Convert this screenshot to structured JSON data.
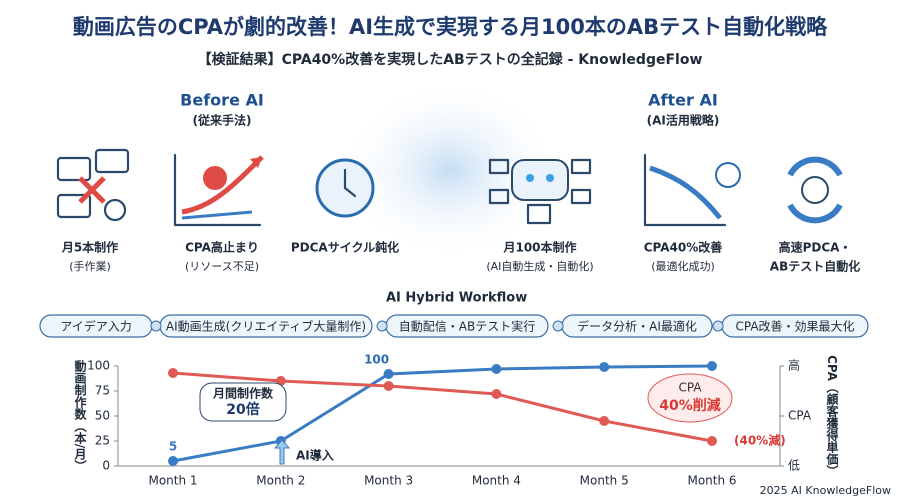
{
  "header": {
    "title": "動画広告のCPAが劇的改善！AI生成で実現する月100本のABテスト自動化戦略",
    "subtitle": "【検証結果】CPA40%改善を実現したABテストの全記録 - KnowledgeFlow"
  },
  "before": {
    "title": "Before AI",
    "subtitle": "(従来手法)",
    "items": [
      {
        "label": "月5本制作",
        "sub": "(手作業)"
      },
      {
        "label": "CPA高止まり",
        "sub": "(リソース不足)"
      },
      {
        "label": "PDCAサイクル鈍化"
      }
    ]
  },
  "after": {
    "title": "After AI",
    "subtitle": "(AI活用戦略)",
    "items": [
      {
        "label": "月100本制作",
        "sub": "(AI自動生成・自動化)"
      },
      {
        "label": "CPA40%改善",
        "sub": "(最適化成功)"
      },
      {
        "label": "高速PDCA・",
        "sub": "ABテスト自動化"
      }
    ]
  },
  "workflow": {
    "title": "AI Hybrid Workflow",
    "steps": [
      "アイデア入力",
      "AI動画生成(クリエイティブ大量制作)",
      "自動配信・ABテスト実行",
      "データ分析・AI最適化",
      "CPA改善・効果最大化"
    ]
  },
  "chart_data": {
    "type": "line",
    "categories": [
      "Month 1",
      "Month 2",
      "Month 3",
      "Month 4",
      "Month 5",
      "Month 6"
    ],
    "y_label": "動画制作数（本/月）",
    "y2_label": "CPA（顧客獲得単価）",
    "series": [
      {
        "color": "#3a7cc4",
        "values": [
          5,
          25,
          92,
          97,
          99,
          100
        ],
        "value_labels": [
          "5",
          null,
          null,
          null,
          null,
          null
        ]
      },
      {
        "color": "#e05a55",
        "axis": "y2",
        "values": [
          93,
          85,
          80,
          72,
          45,
          25
        ]
      }
    ],
    "ylim": [
      0,
      100
    ],
    "yticks": [
      0,
      25,
      50,
      75,
      100
    ],
    "y2lim": [
      0,
      100
    ],
    "y2ticks": [
      {
        "value": 100,
        "label": "高"
      },
      {
        "value": 50,
        "label": "CPA"
      },
      {
        "value": 0,
        "label": "低"
      }
    ],
    "annotations": [
      {
        "text": "100"
      },
      {
        "text": "月間制作数",
        "sub": "20倍"
      },
      {
        "text": "AI導入"
      },
      {
        "text": "CPA",
        "sub": "40%削減"
      },
      {
        "text": "(40%減)"
      }
    ]
  },
  "footer": "2025 AI KnowledgeFlow"
}
